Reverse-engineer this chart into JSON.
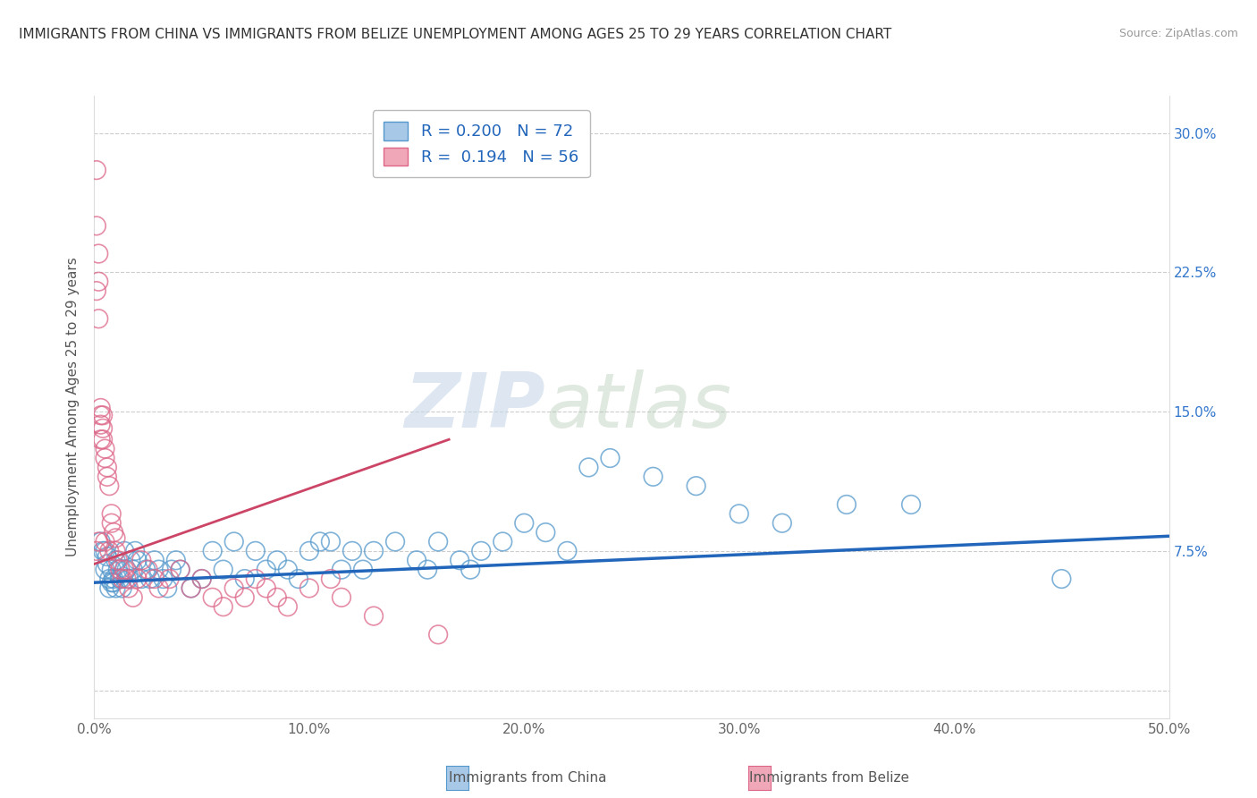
{
  "title": "IMMIGRANTS FROM CHINA VS IMMIGRANTS FROM BELIZE UNEMPLOYMENT AMONG AGES 25 TO 29 YEARS CORRELATION CHART",
  "source": "Source: ZipAtlas.com",
  "ylabel": "Unemployment Among Ages 25 to 29 years",
  "xlim": [
    0,
    0.5
  ],
  "ylim": [
    -0.015,
    0.32
  ],
  "xticks": [
    0.0,
    0.1,
    0.2,
    0.3,
    0.4,
    0.5
  ],
  "xticklabels": [
    "0.0%",
    "10.0%",
    "20.0%",
    "30.0%",
    "40.0%",
    "50.0%"
  ],
  "yticks": [
    0.0,
    0.075,
    0.15,
    0.225,
    0.3
  ],
  "right_yticklabels": [
    "",
    "7.5%",
    "15.0%",
    "22.5%",
    "30.0%"
  ],
  "legend_r_china": "0.200",
  "legend_n_china": "72",
  "legend_r_belize": "0.194",
  "legend_n_belize": "56",
  "china_color": "#a8c8e8",
  "belize_color": "#f0a8b8",
  "china_edge_color": "#5599cc",
  "belize_edge_color": "#dd6688",
  "china_trend_color": "#2266bb",
  "belize_trend_color": "#cc4466",
  "watermark_zip": "ZIP",
  "watermark_atlas": "atlas",
  "background_color": "#ffffff",
  "china_scatter_x": [
    0.003,
    0.004,
    0.005,
    0.005,
    0.006,
    0.006,
    0.007,
    0.007,
    0.008,
    0.008,
    0.009,
    0.009,
    0.01,
    0.01,
    0.011,
    0.012,
    0.013,
    0.014,
    0.015,
    0.016,
    0.017,
    0.018,
    0.019,
    0.02,
    0.022,
    0.024,
    0.026,
    0.028,
    0.03,
    0.032,
    0.034,
    0.036,
    0.038,
    0.04,
    0.045,
    0.05,
    0.055,
    0.06,
    0.065,
    0.07,
    0.075,
    0.08,
    0.085,
    0.09,
    0.095,
    0.1,
    0.105,
    0.11,
    0.115,
    0.12,
    0.125,
    0.13,
    0.14,
    0.15,
    0.155,
    0.16,
    0.17,
    0.175,
    0.18,
    0.19,
    0.2,
    0.21,
    0.22,
    0.23,
    0.24,
    0.26,
    0.28,
    0.3,
    0.32,
    0.35,
    0.38,
    0.45
  ],
  "china_scatter_y": [
    0.08,
    0.075,
    0.075,
    0.065,
    0.068,
    0.072,
    0.06,
    0.055,
    0.058,
    0.065,
    0.06,
    0.058,
    0.055,
    0.07,
    0.065,
    0.06,
    0.055,
    0.075,
    0.065,
    0.06,
    0.07,
    0.065,
    0.075,
    0.07,
    0.06,
    0.065,
    0.06,
    0.07,
    0.065,
    0.06,
    0.055,
    0.065,
    0.07,
    0.065,
    0.055,
    0.06,
    0.075,
    0.065,
    0.08,
    0.06,
    0.075,
    0.065,
    0.07,
    0.065,
    0.06,
    0.075,
    0.08,
    0.08,
    0.065,
    0.075,
    0.065,
    0.075,
    0.08,
    0.07,
    0.065,
    0.08,
    0.07,
    0.065,
    0.075,
    0.08,
    0.09,
    0.085,
    0.075,
    0.12,
    0.125,
    0.115,
    0.11,
    0.095,
    0.09,
    0.1,
    0.1,
    0.06
  ],
  "belize_scatter_x": [
    0.001,
    0.001,
    0.001,
    0.001,
    0.002,
    0.002,
    0.002,
    0.002,
    0.003,
    0.003,
    0.003,
    0.003,
    0.004,
    0.004,
    0.004,
    0.005,
    0.005,
    0.005,
    0.006,
    0.006,
    0.007,
    0.007,
    0.008,
    0.008,
    0.009,
    0.01,
    0.01,
    0.011,
    0.012,
    0.013,
    0.014,
    0.015,
    0.016,
    0.018,
    0.02,
    0.022,
    0.025,
    0.028,
    0.03,
    0.035,
    0.04,
    0.045,
    0.05,
    0.055,
    0.06,
    0.065,
    0.07,
    0.075,
    0.08,
    0.085,
    0.09,
    0.1,
    0.11,
    0.115,
    0.13,
    0.16
  ],
  "belize_scatter_y": [
    0.28,
    0.25,
    0.215,
    0.075,
    0.235,
    0.22,
    0.2,
    0.08,
    0.152,
    0.148,
    0.143,
    0.135,
    0.148,
    0.141,
    0.135,
    0.13,
    0.125,
    0.08,
    0.12,
    0.115,
    0.11,
    0.075,
    0.095,
    0.09,
    0.085,
    0.082,
    0.075,
    0.07,
    0.065,
    0.06,
    0.065,
    0.06,
    0.055,
    0.05,
    0.06,
    0.07,
    0.065,
    0.06,
    0.055,
    0.06,
    0.065,
    0.055,
    0.06,
    0.05,
    0.045,
    0.055,
    0.05,
    0.06,
    0.055,
    0.05,
    0.045,
    0.055,
    0.06,
    0.05,
    0.04,
    0.03
  ],
  "china_trend_x": [
    0.0,
    0.5
  ],
  "china_trend_y": [
    0.058,
    0.083
  ],
  "belize_trend_x": [
    0.0,
    0.165
  ],
  "belize_trend_y": [
    0.068,
    0.135
  ]
}
